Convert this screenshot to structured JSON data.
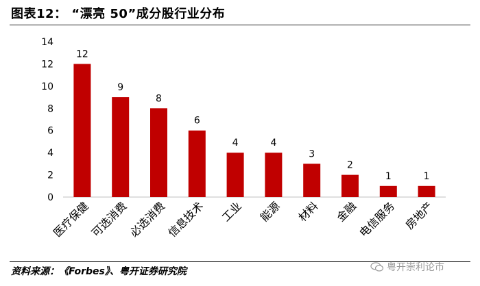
{
  "header": {
    "title": "图表12：  “漂亮 50”成分股行业分布"
  },
  "footer": {
    "source": "资料来源：《Forbes》、粤开证券研究院",
    "watermark": "粤开崇利论市"
  },
  "chart_data": {
    "type": "bar",
    "categories": [
      "医疗保健",
      "可选消费",
      "必选消费",
      "信息技术",
      "工业",
      "能源",
      "材料",
      "金融",
      "电信服务",
      "房地产"
    ],
    "values": [
      12,
      9,
      8,
      6,
      4,
      4,
      3,
      2,
      1,
      1
    ],
    "yticks": [
      0,
      2,
      4,
      6,
      8,
      10,
      12,
      14
    ],
    "ylim": [
      0,
      14
    ],
    "grid": false,
    "legend": false,
    "colors": {
      "bar": "#C00000",
      "axis": "#BFBFBF"
    }
  }
}
